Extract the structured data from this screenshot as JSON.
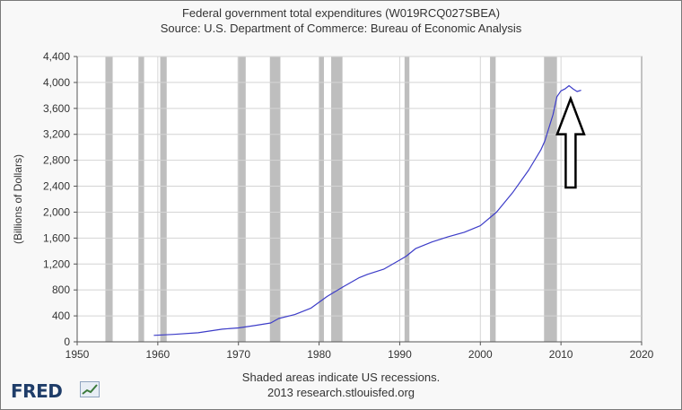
{
  "chart_data": {
    "type": "line",
    "title": "Federal government total expenditures (W019RCQ027SBEA)",
    "subtitle": "Source: U.S. Department of Commerce: Bureau of Economic Analysis",
    "ylabel": "(Billions of Dollars)",
    "xlabel": "",
    "xlim": [
      1950,
      2020
    ],
    "ylim": [
      0,
      4400
    ],
    "x_ticks": [
      1950,
      1960,
      1970,
      1980,
      1990,
      2000,
      2010,
      2020
    ],
    "y_ticks": [
      0,
      400,
      800,
      1200,
      1600,
      2000,
      2400,
      2800,
      3200,
      3600,
      4000,
      4400
    ],
    "y_tick_labels": [
      "0",
      "400",
      "800",
      "1,200",
      "1,600",
      "2,000",
      "2,400",
      "2,800",
      "3,200",
      "3,600",
      "4,000",
      "4,400"
    ],
    "grid": true,
    "line_color": "#3c3cc8",
    "recession_color": "#bebebe",
    "recessions": [
      [
        1953.5,
        1954.4
      ],
      [
        1957.6,
        1958.3
      ],
      [
        1960.3,
        1961.1
      ],
      [
        1969.9,
        1970.9
      ],
      [
        1973.9,
        1975.2
      ],
      [
        1980.0,
        1980.6
      ],
      [
        1981.5,
        1982.9
      ],
      [
        1990.6,
        1991.2
      ],
      [
        2001.2,
        2001.9
      ],
      [
        2007.9,
        2009.5
      ]
    ],
    "series": [
      {
        "x": [
          1959.5,
          1962,
          1965,
          1968,
          1970,
          1972,
          1974,
          1975,
          1977,
          1979,
          1981,
          1983,
          1985,
          1986,
          1988,
          1990,
          1990.8,
          1992,
          1994,
          1996,
          1998,
          2000,
          2002,
          2004,
          2006,
          2007.5,
          2008,
          2009,
          2009.5,
          2010,
          2010.5,
          2011,
          2011.5,
          2012,
          2012.5
        ],
        "y": [
          100,
          115,
          140,
          195,
          215,
          250,
          290,
          360,
          420,
          520,
          700,
          850,
          990,
          1040,
          1120,
          1260,
          1320,
          1440,
          1540,
          1620,
          1690,
          1790,
          2000,
          2300,
          2650,
          2960,
          3100,
          3500,
          3780,
          3870,
          3900,
          3950,
          3900,
          3860,
          3880
        ]
      }
    ],
    "annotations": [
      {
        "type": "arrow",
        "direction": "up",
        "x": 2011.2,
        "y_tip": 3750,
        "y_tail": 2380
      }
    ]
  },
  "footer": {
    "note": "Shaded areas indicate US recessions.",
    "credit": "2013 research.stlouisfed.org",
    "logo": "FRED"
  }
}
